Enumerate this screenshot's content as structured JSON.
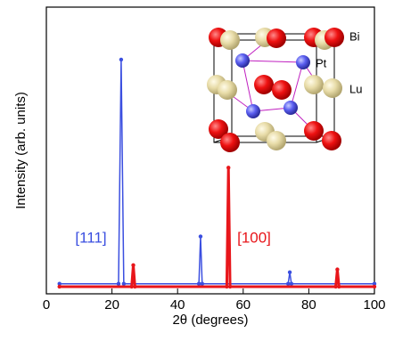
{
  "chart_data": {
    "type": "line",
    "xlabel": "2θ (degrees)",
    "ylabel": "Intensity (arb. units)",
    "xlim": [
      0,
      100
    ],
    "ylim": [
      0,
      100
    ],
    "xticks": [
      0,
      20,
      40,
      60,
      80,
      100
    ],
    "series": [
      {
        "name": "[111]",
        "color": "#3b4fe0",
        "x": [
          4,
          22.0,
          22.8,
          23.6,
          46.5,
          47.0,
          47.5,
          73.7,
          74.2,
          74.7,
          100
        ],
        "values": [
          3.5,
          3.5,
          81.7,
          3.5,
          3.5,
          20,
          3.5,
          3.5,
          7.5,
          3.5,
          3.5
        ]
      },
      {
        "name": "[100]",
        "color": "#e8161b",
        "x": [
          4,
          26.0,
          26.5,
          27.0,
          55.0,
          55.5,
          56.0,
          88.2,
          88.7,
          89.2,
          100
        ],
        "values": [
          2.5,
          2.5,
          10,
          2.5,
          2.5,
          44,
          2.5,
          2.5,
          8.5,
          2.5,
          2.5
        ]
      }
    ],
    "inset_labels": [
      "Bi",
      "Pt",
      "Lu"
    ]
  }
}
